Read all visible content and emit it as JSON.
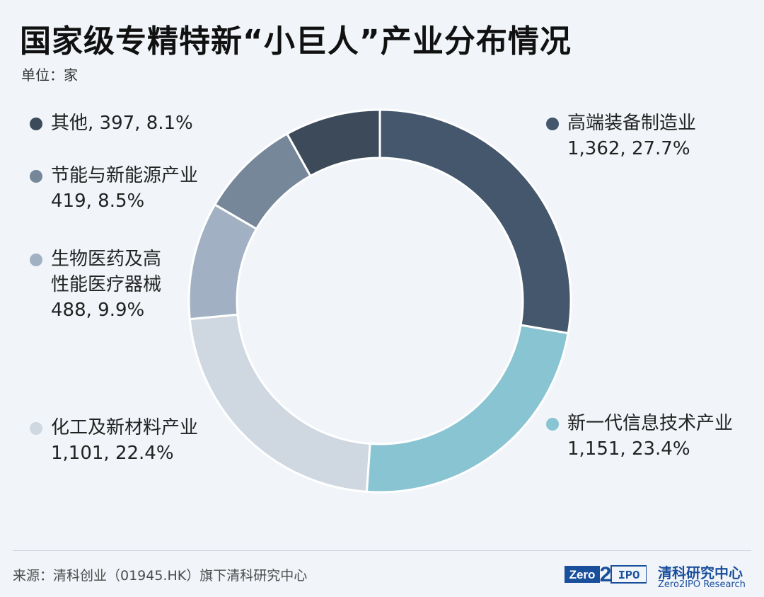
{
  "header": {
    "title": "国家级专精特新“小巨人”产业分布情况",
    "unit": "单位：家"
  },
  "chart_data": {
    "type": "pie",
    "donut": true,
    "total_slices": 6,
    "slices": [
      {
        "label": "高端装备制造业",
        "value": 1362,
        "value_text": "1,362, 27.7%",
        "percent": 27.7,
        "color": "#44576d"
      },
      {
        "label": "新一代信息技术产业",
        "value": 1151,
        "value_text": "1,151, 23.4%",
        "percent": 23.4,
        "color": "#89c4d2"
      },
      {
        "label": "化工及新材料产业",
        "value": 1101,
        "value_text": "1,101, 22.4%",
        "percent": 22.4,
        "color": "#cfd7e1"
      },
      {
        "label": "生物医药及高性能医疗器械",
        "label_lines": [
          "生物医药及高",
          "性能医疗器械"
        ],
        "value": 488,
        "value_text": "488, 9.9%",
        "percent": 9.9,
        "color": "#a1b1c3"
      },
      {
        "label": "节能与新能源产业",
        "value": 419,
        "value_text": "419, 8.5%",
        "percent": 8.5,
        "color": "#76879a"
      },
      {
        "label": "其他",
        "value": 397,
        "value_text": "397, 8.1%",
        "percent": 8.1,
        "color": "#3c4a5a"
      }
    ],
    "legend": {
      "placement": "around-chart"
    }
  },
  "footer": {
    "source": "来源：清科创业（01945.HK）旗下清科研究中心",
    "brand_cn": "清科研究中心",
    "brand_en": "Zero2IPO Research",
    "logo_text_left": "Zero",
    "logo_text_mid": "2",
    "logo_text_right": "IPO"
  }
}
